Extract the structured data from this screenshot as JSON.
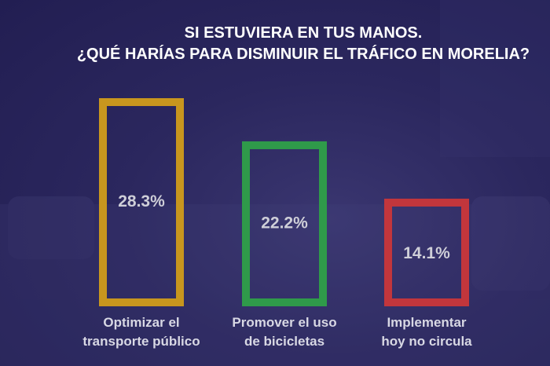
{
  "chart_data": {
    "type": "bar",
    "title": "SI ESTUVIERA EN TUS MANOS.",
    "subtitle": "¿QUÉ HARÍAS PARA DISMINUIR EL TRÁFICO EN MORELIA?",
    "categories": [
      "Optimizar el\ntransporte público",
      "Promover el uso\nde bicicletas",
      "Implementar\nhoy no circula"
    ],
    "values": [
      28.3,
      22.2,
      14.1
    ],
    "value_labels": [
      "28.3%",
      "22.2%",
      "14.1%"
    ],
    "colors": [
      "#c8961e",
      "#2f9a4a",
      "#c2363c"
    ]
  }
}
